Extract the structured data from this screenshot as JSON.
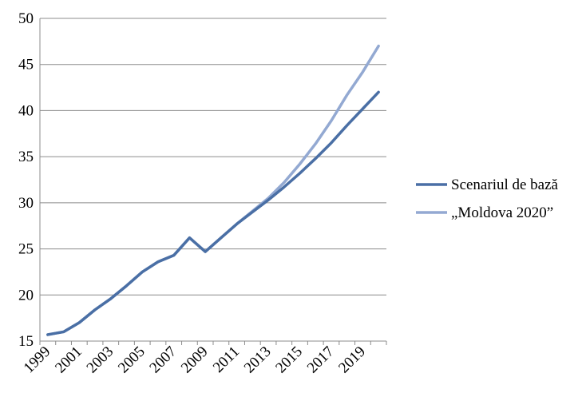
{
  "chart_data": {
    "type": "line",
    "title": "",
    "xlabel": "",
    "ylabel": "",
    "ylim": [
      15,
      50
    ],
    "yticks": [
      15,
      20,
      25,
      30,
      35,
      40,
      45,
      50
    ],
    "x": [
      1999,
      2000,
      2001,
      2002,
      2003,
      2004,
      2005,
      2006,
      2007,
      2008,
      2009,
      2010,
      2011,
      2012,
      2013,
      2014,
      2015,
      2016,
      2017,
      2018,
      2019,
      2020
    ],
    "xtick_labels": [
      "1999",
      "2001",
      "2003",
      "2005",
      "2007",
      "2009",
      "2011",
      "2013",
      "2015",
      "2017",
      "2019"
    ],
    "grid": "horizontal",
    "legend_position": "right",
    "series": [
      {
        "name": "Scenariul de bază",
        "color": "#4a6fa5",
        "values": [
          15.7,
          16.0,
          17.0,
          18.4,
          19.6,
          21.0,
          22.5,
          23.6,
          24.3,
          26.2,
          24.7,
          26.2,
          27.7,
          29.0,
          30.3,
          31.7,
          33.2,
          34.8,
          36.5,
          38.4,
          40.2,
          42.0
        ]
      },
      {
        "name": "„Moldova 2020”",
        "color": "#93a9d2",
        "values": [
          15.7,
          16.0,
          17.0,
          18.4,
          19.6,
          21.0,
          22.5,
          23.6,
          24.3,
          26.2,
          24.7,
          26.2,
          27.7,
          29.1,
          30.5,
          32.2,
          34.2,
          36.4,
          38.9,
          41.7,
          44.2,
          47.0
        ]
      }
    ]
  }
}
